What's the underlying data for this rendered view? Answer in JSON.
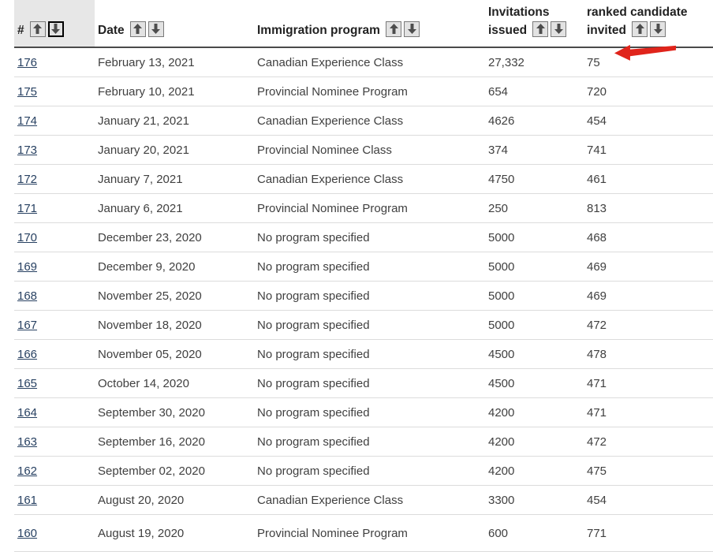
{
  "colors": {
    "link": "#284162",
    "text": "#404040",
    "header_text": "#222222",
    "header_shaded_bg": "#e7e7e7",
    "header_border": "#4a4a4a",
    "row_border": "#dcdcdc",
    "sort_button_bg": "#e2e2e2",
    "sort_button_border": "#7a7a7a",
    "sort_arrow": "#4d4d4d",
    "annotation_red": "#e0241b"
  },
  "icons": {
    "sort_asc": "up-arrow-icon",
    "sort_desc": "down-arrow-icon",
    "annotation": "red-left-arrow-icon"
  },
  "table": {
    "columns": [
      {
        "id": "num",
        "label": "#",
        "shaded": true,
        "sort_active": "desc"
      },
      {
        "id": "date",
        "label": "Date"
      },
      {
        "id": "program",
        "label": "Immigration program"
      },
      {
        "id": "invitations",
        "label": "Invitations issued"
      },
      {
        "id": "rank",
        "label": "ranked candidate invited"
      }
    ],
    "rows": [
      {
        "num": "176",
        "date": "February 13, 2021",
        "program": "Canadian Experience Class",
        "invitations": "27,332",
        "rank": "75"
      },
      {
        "num": "175",
        "date": "February 10, 2021",
        "program": "Provincial Nominee Program",
        "invitations": "654",
        "rank": "720"
      },
      {
        "num": "174",
        "date": "January 21, 2021",
        "program": "Canadian Experience Class",
        "invitations": "4626",
        "rank": "454"
      },
      {
        "num": "173",
        "date": "January 20, 2021",
        "program": "Provincial Nominee Class",
        "invitations": "374",
        "rank": "741"
      },
      {
        "num": "172",
        "date": "January 7, 2021",
        "program": "Canadian Experience Class",
        "invitations": "4750",
        "rank": "461"
      },
      {
        "num": "171",
        "date": "January 6, 2021",
        "program": "Provincial Nominee Program",
        "invitations": "250",
        "rank": "813"
      },
      {
        "num": "170",
        "date": "December 23, 2020",
        "program": "No program specified",
        "invitations": "5000",
        "rank": "468"
      },
      {
        "num": "169",
        "date": "December 9, 2020",
        "program": "No program specified",
        "invitations": "5000",
        "rank": "469"
      },
      {
        "num": "168",
        "date": "November 25, 2020",
        "program": "No program specified",
        "invitations": "5000",
        "rank": "469"
      },
      {
        "num": "167",
        "date": "November 18, 2020",
        "program": "No program specified",
        "invitations": "5000",
        "rank": "472"
      },
      {
        "num": "166",
        "date": "November 05, 2020",
        "program": "No program specified",
        "invitations": "4500",
        "rank": "478"
      },
      {
        "num": "165",
        "date": "October 14, 2020",
        "program": "No program specified",
        "invitations": "4500",
        "rank": "471"
      },
      {
        "num": "164",
        "date": "September 30, 2020",
        "program": "No program specified",
        "invitations": "4200",
        "rank": "471"
      },
      {
        "num": "163",
        "date": "September 16, 2020",
        "program": "No program specified",
        "invitations": "4200",
        "rank": "472"
      },
      {
        "num": "162",
        "date": "September 02, 2020",
        "program": "No program specified",
        "invitations": "4200",
        "rank": "475"
      },
      {
        "num": "161",
        "date": "August 20, 2020",
        "program": "Canadian Experience Class",
        "invitations": "3300",
        "rank": "454"
      },
      {
        "num": "160",
        "date": "August 19, 2020",
        "program": "Provincial Nominee Program",
        "invitations": "600",
        "rank": "771"
      }
    ]
  },
  "annotation": {
    "type": "red-arrow",
    "points_at_value": "75",
    "points_at_row": "176"
  }
}
